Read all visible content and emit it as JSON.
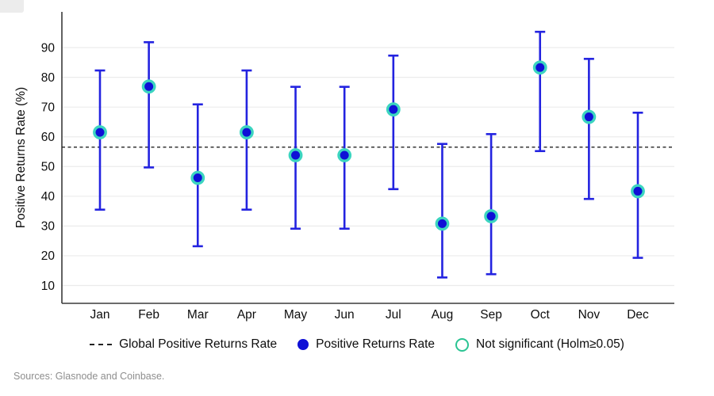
{
  "chart_data": {
    "type": "scatter",
    "title": "",
    "xlabel": "",
    "ylabel": "Positive Returns Rate (%)",
    "yticks": [
      10,
      20,
      30,
      40,
      50,
      60,
      70,
      80,
      90
    ],
    "ylim": [
      4,
      102
    ],
    "grid": "horizontal",
    "legend_position": "bottom",
    "categories": [
      "Jan",
      "Feb",
      "Mar",
      "Apr",
      "May",
      "Jun",
      "Jul",
      "Aug",
      "Sep",
      "Oct",
      "Nov",
      "Dec"
    ],
    "series": [
      {
        "name": "Positive Returns Rate",
        "values": [
          61.5,
          76.9,
          46.2,
          61.5,
          53.8,
          53.8,
          69.2,
          30.8,
          33.3,
          83.3,
          66.7,
          41.7
        ],
        "ci_low": [
          35.5,
          49.7,
          23.2,
          35.5,
          29.1,
          29.1,
          42.4,
          12.7,
          13.8,
          55.2,
          39.1,
          19.3
        ],
        "ci_high": [
          82.3,
          91.8,
          70.9,
          82.3,
          76.8,
          76.8,
          87.3,
          57.6,
          60.9,
          95.3,
          86.2,
          68.1
        ],
        "not_significant": [
          true,
          true,
          true,
          true,
          true,
          true,
          true,
          true,
          true,
          true,
          true,
          true
        ]
      }
    ],
    "reference_line": {
      "label": "Global Positive Returns Rate",
      "value": 56.5,
      "style": "dashed"
    }
  },
  "legend": {
    "global_label": "Global Positive Returns Rate",
    "points_label": "Positive Returns Rate",
    "ns_label": "Not significant (Holm≥0.05)"
  },
  "footer": {
    "sources": "Sources: Glasnode and Coinbase."
  },
  "colors": {
    "point_fill": "#0f10d6",
    "errorbar": "#2323e0",
    "ns_ring": "#3cd5c0",
    "ns_legend": "#2bc493",
    "reference": "#222222",
    "grid": "#ebebeb",
    "axis": "#3b3b3b",
    "text": "#0d0d0d",
    "sources": "#8e8e8e",
    "background": "#ffffff"
  }
}
